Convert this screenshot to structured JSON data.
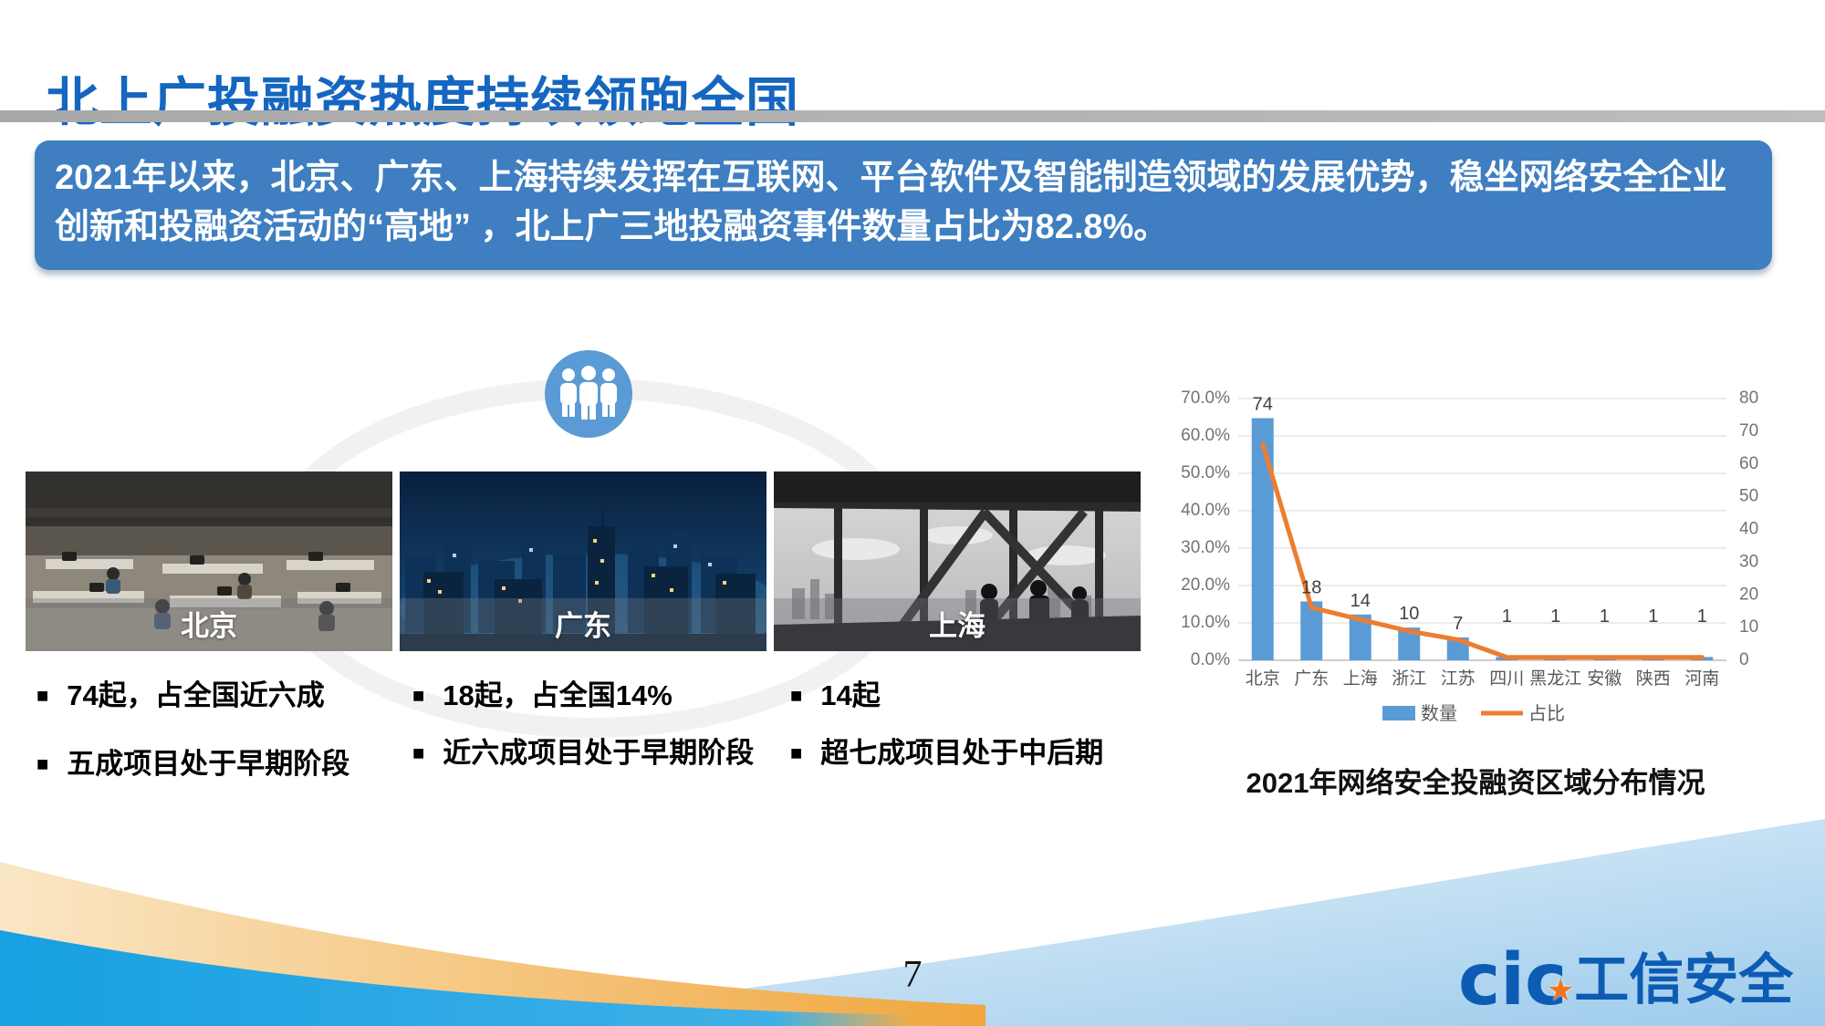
{
  "slide": {
    "title": "北上广投融资热度持续领跑全国",
    "banner": "2021年以来，北京、广东、上海持续发挥在互联网、平台软件及智能制造领域的发展优势，稳坐网络安全企业创新和投融资活动的“高地” ，北上广三地投融资事件数量占比为82.8%。",
    "bullet_glyph": "■",
    "page_number": "7",
    "logo": {
      "mark": "cic",
      "star": "★",
      "name": "工信安全"
    }
  },
  "cities": [
    {
      "caption": "北京",
      "bullets": [
        "74起，占全国近六成",
        "五成项目处于早期阶段"
      ]
    },
    {
      "caption": "广东",
      "bullets": [
        "18起，占全国14%",
        "近六成项目处于早期阶段"
      ]
    },
    {
      "caption": "上海",
      "bullets": [
        "14起",
        "超七成项目处于中后期"
      ]
    }
  ],
  "chart_data": {
    "type": "combo-bar-line",
    "categories": [
      "北京",
      "广东",
      "上海",
      "浙江",
      "江苏",
      "四川",
      "黑龙江",
      "安徽",
      "陕西",
      "河南"
    ],
    "series": [
      {
        "name": "数量",
        "type": "bar",
        "axis": "right",
        "color": "#5B9BD5",
        "values": [
          74,
          18,
          14,
          10,
          7,
          1,
          1,
          1,
          1,
          1
        ]
      },
      {
        "name": "占比",
        "type": "line",
        "axis": "left",
        "color": "#ED7D31",
        "values_pct": [
          57.8,
          14.1,
          10.9,
          7.8,
          5.5,
          0.8,
          0.8,
          0.8,
          0.8,
          0.8
        ]
      }
    ],
    "data_labels": [
      "74",
      "18",
      "14",
      "10",
      "7",
      "1",
      "1",
      "1",
      "1",
      "1"
    ],
    "left_axis": {
      "min": 0,
      "max": 70,
      "ticks": [
        "0.0%",
        "10.0%",
        "20.0%",
        "30.0%",
        "40.0%",
        "50.0%",
        "60.0%",
        "70.0%"
      ]
    },
    "right_axis": {
      "min": 0,
      "max": 80,
      "ticks": [
        "0",
        "10",
        "20",
        "30",
        "40",
        "50",
        "60",
        "70",
        "80"
      ]
    },
    "legend": [
      "数量",
      "占比"
    ],
    "legend_position": "bottom",
    "grid": true,
    "caption": "2021年网络安全投融资区域分布情况"
  },
  "colors": {
    "title_blue": "#1566C0",
    "banner_blue": "#3E7EC1",
    "bar_blue": "#5B9BD5",
    "line_orange": "#ED7D31",
    "axis_gray": "#737373",
    "grid_gray": "#D9D9D9",
    "wave_orange": "#F0A63C",
    "wave_bright_blue": "#1BA7E5",
    "wave_light_blue": "#A6D0EE"
  }
}
